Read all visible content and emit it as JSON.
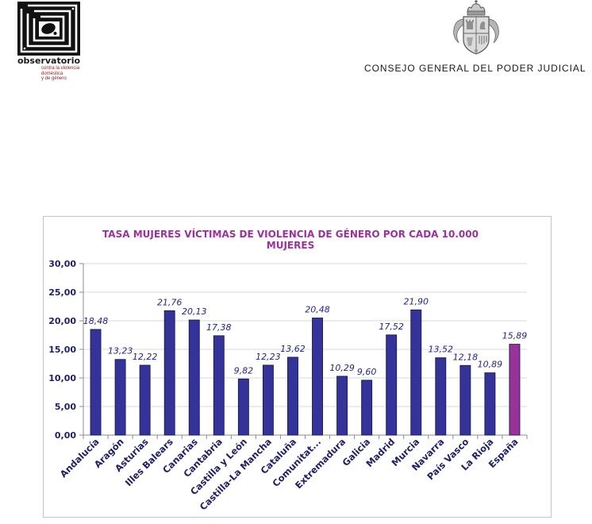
{
  "header": {
    "logo": {
      "icon": "observatorio-logo-icon",
      "name": "observatorio",
      "tagline": [
        "contra la violencia",
        "doméstica",
        "y de género"
      ]
    },
    "emblem": "coat-of-arms-icon",
    "institution": "CONSEJO GENERAL DEL PODER JUDICIAL"
  },
  "chart_data": {
    "type": "bar",
    "title": "TASA MUJERES VÍCTIMAS DE VIOLENCIA DE GÉNERO POR CADA 10.000 MUJERES",
    "categories": [
      "Andalucía",
      "Aragón",
      "Asturias",
      "Illes Balears",
      "Canarias",
      "Cantabria",
      "Castilla y León",
      "Castilla-La Mancha",
      "Cataluña",
      "Comunitat...",
      "Extremadura",
      "Galicia",
      "Madrid",
      "Murcia",
      "Navarra",
      "País Vasco",
      "La Rioja",
      "España"
    ],
    "values": [
      18.48,
      13.23,
      12.22,
      21.76,
      20.13,
      17.38,
      9.82,
      12.23,
      13.62,
      20.48,
      10.29,
      9.6,
      17.52,
      21.9,
      13.52,
      12.18,
      10.89,
      15.89
    ],
    "data_labels": [
      "18,48",
      "13,23",
      "12,22",
      "21,76",
      "20,13",
      "17,38",
      "9,82",
      "12,23",
      "13,62",
      "20,48",
      "10,29",
      "9,60",
      "17,52",
      "21,90",
      "13,52",
      "12,18",
      "10,89",
      "15,89"
    ],
    "ylim": [
      0,
      30
    ],
    "yticks": [
      0,
      5,
      10,
      15,
      20,
      25,
      30
    ],
    "ytick_labels": [
      "0,00",
      "5,00",
      "10,00",
      "15,00",
      "20,00",
      "25,00",
      "30,00"
    ],
    "grid": true,
    "highlight_category": "España",
    "colors": {
      "bar": "#333399",
      "highlight": "#993399",
      "title": "#993399"
    }
  }
}
